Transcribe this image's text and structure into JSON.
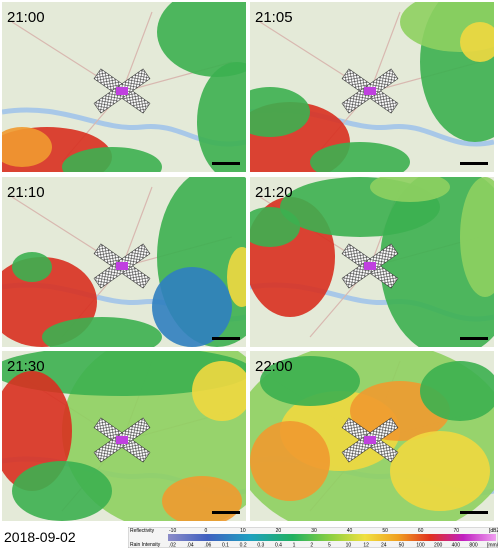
{
  "panels": [
    {
      "time": "21:00"
    },
    {
      "time": "21:05"
    },
    {
      "time": "21:10"
    },
    {
      "time": "21:20"
    },
    {
      "time": "21:30"
    },
    {
      "time": "22:00"
    }
  ],
  "date": "2018-09-02",
  "legend": {
    "reflectivity_label": "Reflectivity",
    "reflectivity_ticks": [
      "-10",
      "0",
      "10",
      "20",
      "30",
      "40",
      "50",
      "60",
      "70",
      "[dBZ]"
    ],
    "rain_label": "Rain Intensity",
    "rain_ticks": [
      ".02",
      ".04",
      ".06",
      "0.1",
      "0.2",
      "0.3",
      "0.4",
      "1",
      "2",
      "5",
      "10",
      "12",
      "24",
      "50",
      "100",
      "200",
      "400",
      "800",
      "[mm/h]"
    ]
  }
}
